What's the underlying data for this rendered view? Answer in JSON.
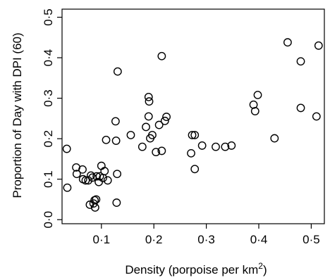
{
  "chart_data": {
    "type": "scatter",
    "title": "",
    "xlabel": "Density (porpoise per km",
    "xlabel_sup": "2",
    "xlabel_end": ")",
    "ylabel": "Proportion of Day with DPI (60)",
    "xlim": [
      0.025,
      0.525
    ],
    "ylim": [
      -0.01,
      0.52
    ],
    "x_ticks": [
      {
        "value": 0.1,
        "label": "0·1"
      },
      {
        "value": 0.2,
        "label": "0·2"
      },
      {
        "value": 0.3,
        "label": "0·3"
      },
      {
        "value": 0.4,
        "label": "0·4"
      },
      {
        "value": 0.5,
        "label": "0·5"
      }
    ],
    "y_ticks": [
      {
        "value": 0.0,
        "label": "0·0"
      },
      {
        "value": 0.1,
        "label": "0·1"
      },
      {
        "value": 0.2,
        "label": "0·2"
      },
      {
        "value": 0.3,
        "label": "0·3"
      },
      {
        "value": 0.4,
        "label": "0·4"
      },
      {
        "value": 0.5,
        "label": "0·5"
      }
    ],
    "grid": false,
    "marker": "open-circle",
    "points": [
      [
        0.034,
        0.175
      ],
      [
        0.035,
        0.079
      ],
      [
        0.052,
        0.129
      ],
      [
        0.053,
        0.113
      ],
      [
        0.064,
        0.124
      ],
      [
        0.065,
        0.1
      ],
      [
        0.07,
        0.097
      ],
      [
        0.075,
        0.097
      ],
      [
        0.078,
        0.037
      ],
      [
        0.08,
        0.109
      ],
      [
        0.083,
        0.104
      ],
      [
        0.085,
        0.04
      ],
      [
        0.087,
        0.048
      ],
      [
        0.088,
        0.03
      ],
      [
        0.09,
        0.05
      ],
      [
        0.091,
        0.107
      ],
      [
        0.095,
        0.093
      ],
      [
        0.097,
        0.107
      ],
      [
        0.1,
        0.133
      ],
      [
        0.103,
        0.103
      ],
      [
        0.106,
        0.12
      ],
      [
        0.109,
        0.197
      ],
      [
        0.112,
        0.097
      ],
      [
        0.127,
        0.243
      ],
      [
        0.128,
        0.195
      ],
      [
        0.129,
        0.042
      ],
      [
        0.13,
        0.113
      ],
      [
        0.131,
        0.366
      ],
      [
        0.156,
        0.209
      ],
      [
        0.178,
        0.18
      ],
      [
        0.185,
        0.229
      ],
      [
        0.19,
        0.303
      ],
      [
        0.191,
        0.292
      ],
      [
        0.19,
        0.255
      ],
      [
        0.193,
        0.201
      ],
      [
        0.197,
        0.209
      ],
      [
        0.204,
        0.167
      ],
      [
        0.21,
        0.234
      ],
      [
        0.215,
        0.404
      ],
      [
        0.215,
        0.17
      ],
      [
        0.221,
        0.244
      ],
      [
        0.224,
        0.254
      ],
      [
        0.271,
        0.164
      ],
      [
        0.273,
        0.209
      ],
      [
        0.278,
        0.209
      ],
      [
        0.278,
        0.125
      ],
      [
        0.292,
        0.183
      ],
      [
        0.318,
        0.18
      ],
      [
        0.336,
        0.18
      ],
      [
        0.348,
        0.183
      ],
      [
        0.39,
        0.284
      ],
      [
        0.393,
        0.268
      ],
      [
        0.398,
        0.308
      ],
      [
        0.43,
        0.201
      ],
      [
        0.455,
        0.438
      ],
      [
        0.48,
        0.391
      ],
      [
        0.48,
        0.276
      ],
      [
        0.51,
        0.255
      ],
      [
        0.514,
        0.43
      ]
    ]
  }
}
